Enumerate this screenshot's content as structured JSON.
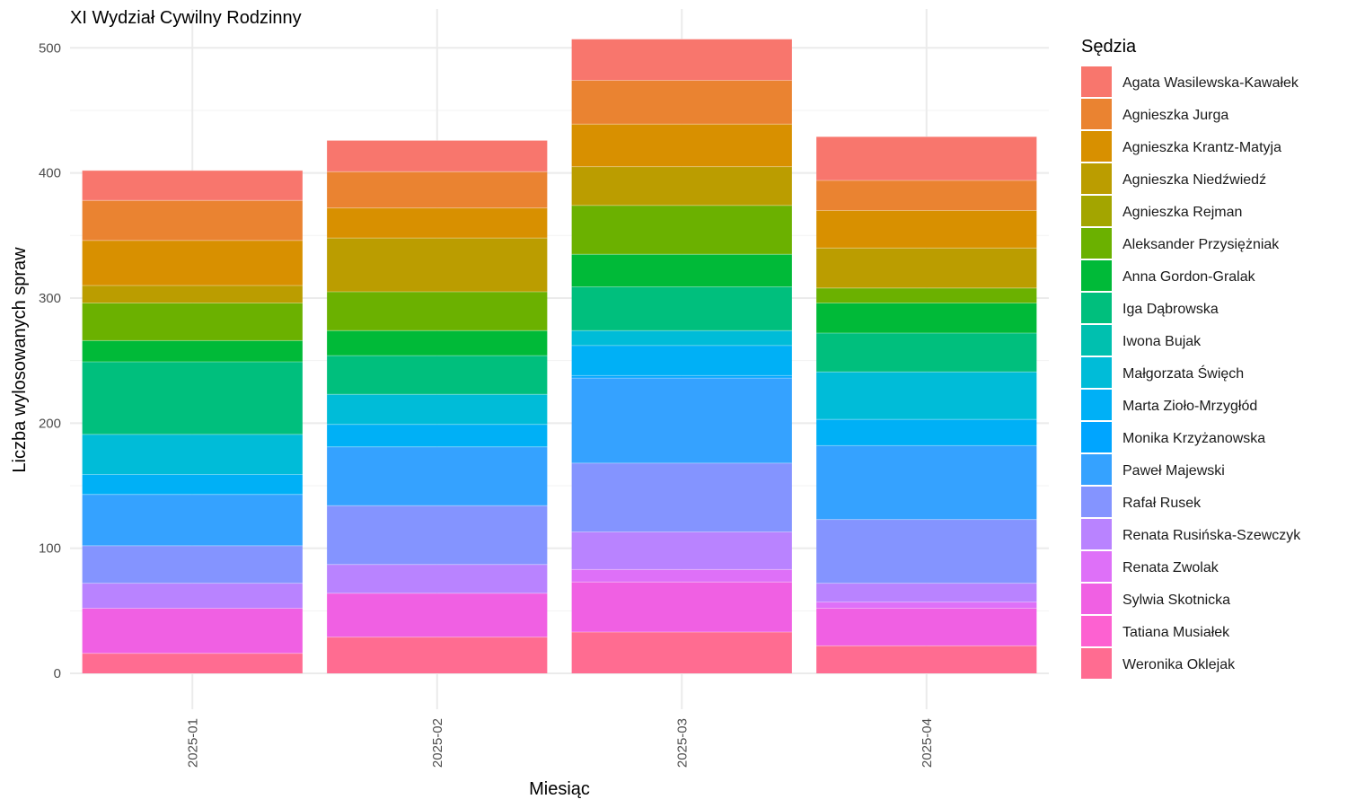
{
  "chart_data": {
    "type": "bar",
    "stacked": true,
    "title": "XI Wydział Cywilny Rodzinny",
    "xlabel": "Miesiąc",
    "ylabel": "Liczba wylosowanych spraw",
    "ylim": [
      0,
      520
    ],
    "yticks": [
      0,
      100,
      200,
      300,
      400,
      500
    ],
    "categories": [
      "2025-01",
      "2025-02",
      "2025-03",
      "2025-04"
    ],
    "legend_title": "Sędzia",
    "legend_position": "right",
    "grid": true,
    "series": [
      {
        "name": "Agata Wasilewska-Kawałek",
        "color": "#F8766D",
        "values": [
          24,
          25,
          33,
          35
        ]
      },
      {
        "name": "Agnieszka Jurga",
        "color": "#EA8331",
        "values": [
          32,
          29,
          35,
          24
        ]
      },
      {
        "name": "Agnieszka Krantz-Matyja",
        "color": "#D89000",
        "values": [
          36,
          24,
          34,
          30
        ]
      },
      {
        "name": "Agnieszka Niedźwiedź",
        "color": "#BB9D00",
        "values": [
          14,
          43,
          31,
          32
        ]
      },
      {
        "name": "Agnieszka Rejman",
        "color": "#A3A500",
        "values": [
          0,
          0,
          0,
          0
        ]
      },
      {
        "name": "Aleksander Przysiężniak",
        "color": "#6BB100",
        "values": [
          30,
          31,
          39,
          12
        ]
      },
      {
        "name": "Anna Gordon-Gralak",
        "color": "#00BA38",
        "values": [
          17,
          20,
          26,
          24
        ]
      },
      {
        "name": "Iga Dąbrowska",
        "color": "#00BF7D",
        "values": [
          58,
          31,
          35,
          31
        ]
      },
      {
        "name": "Iwona Bujak",
        "color": "#00C0AF",
        "values": [
          0,
          0,
          0,
          0
        ]
      },
      {
        "name": "Małgorzata Święch",
        "color": "#00BCD8",
        "values": [
          32,
          24,
          12,
          38
        ]
      },
      {
        "name": "Marta Zioło-Mrzygłód",
        "color": "#00B0F6",
        "values": [
          16,
          18,
          24,
          21
        ]
      },
      {
        "name": "Monika Krzyżanowska",
        "color": "#00A5FF",
        "values": [
          0,
          0,
          2,
          0
        ]
      },
      {
        "name": "Paweł Majewski",
        "color": "#35A2FF",
        "values": [
          41,
          47,
          68,
          59
        ]
      },
      {
        "name": "Rafał Rusek",
        "color": "#8494FF",
        "values": [
          30,
          47,
          55,
          51
        ]
      },
      {
        "name": "Renata Rusińska-Szewczyk",
        "color": "#B983FF",
        "values": [
          20,
          23,
          30,
          15
        ]
      },
      {
        "name": "Renata Zwolak",
        "color": "#DE70F8",
        "values": [
          0,
          0,
          10,
          5
        ]
      },
      {
        "name": "Sylwia Skotnicka",
        "color": "#F060E3",
        "values": [
          36,
          35,
          40,
          30
        ]
      },
      {
        "name": "Tatiana Musiałek",
        "color": "#FD61D1",
        "values": [
          0,
          0,
          0,
          0
        ]
      },
      {
        "name": "Weronika Oklejak",
        "color": "#FF6C91",
        "values": [
          16,
          29,
          33,
          22
        ]
      }
    ]
  }
}
